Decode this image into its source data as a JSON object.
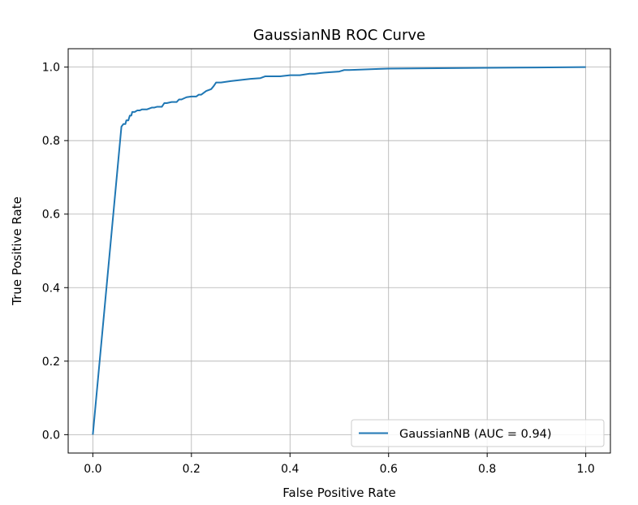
{
  "chart_data": {
    "type": "line",
    "title": "GaussianNB ROC Curve",
    "xlabel": "False Positive Rate",
    "ylabel": "True Positive Rate",
    "xlim": [
      -0.05,
      1.05
    ],
    "ylim": [
      -0.05,
      1.05
    ],
    "xticks": [
      0.0,
      0.2,
      0.4,
      0.6,
      0.8,
      1.0
    ],
    "xtick_labels": [
      "0.0",
      "0.2",
      "0.4",
      "0.6",
      "0.8",
      "1.0"
    ],
    "yticks": [
      0.0,
      0.2,
      0.4,
      0.6,
      0.8,
      1.0
    ],
    "ytick_labels": [
      "0.0",
      "0.2",
      "0.4",
      "0.6",
      "0.8",
      "1.0"
    ],
    "grid": true,
    "legend_position": "bottom-right",
    "series": [
      {
        "name": "GaussianNB (AUC = 0.94)",
        "color": "#1f77b4",
        "x": [
          0.0,
          0.058,
          0.062,
          0.066,
          0.068,
          0.072,
          0.075,
          0.078,
          0.08,
          0.085,
          0.09,
          0.095,
          0.1,
          0.11,
          0.12,
          0.125,
          0.13,
          0.14,
          0.145,
          0.15,
          0.16,
          0.17,
          0.175,
          0.18,
          0.185,
          0.19,
          0.2,
          0.21,
          0.215,
          0.22,
          0.225,
          0.23,
          0.24,
          0.245,
          0.25,
          0.26,
          0.28,
          0.3,
          0.32,
          0.34,
          0.35,
          0.38,
          0.4,
          0.42,
          0.44,
          0.45,
          0.47,
          0.5,
          0.51,
          0.52,
          0.58,
          0.6,
          0.7,
          0.8,
          0.9,
          1.0
        ],
        "y": [
          0.0,
          0.838,
          0.845,
          0.845,
          0.855,
          0.855,
          0.868,
          0.868,
          0.878,
          0.878,
          0.882,
          0.882,
          0.885,
          0.885,
          0.89,
          0.89,
          0.892,
          0.892,
          0.902,
          0.902,
          0.905,
          0.905,
          0.912,
          0.912,
          0.915,
          0.918,
          0.92,
          0.92,
          0.925,
          0.925,
          0.93,
          0.935,
          0.94,
          0.948,
          0.958,
          0.958,
          0.962,
          0.965,
          0.968,
          0.97,
          0.975,
          0.975,
          0.978,
          0.978,
          0.982,
          0.982,
          0.985,
          0.988,
          0.992,
          0.992,
          0.995,
          0.996,
          0.997,
          0.998,
          0.999,
          1.0
        ]
      }
    ]
  }
}
